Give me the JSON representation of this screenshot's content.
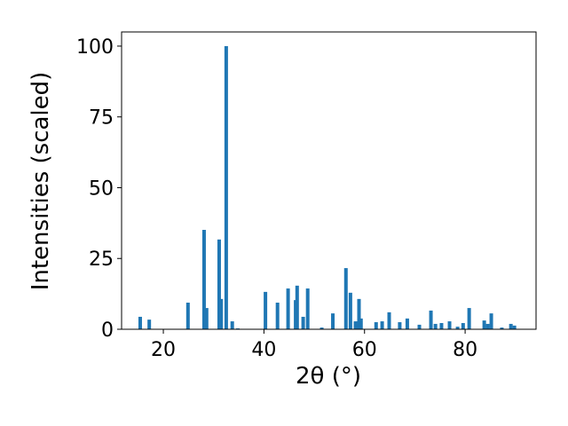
{
  "chart_data": {
    "type": "bar",
    "x_label": "2θ (°)",
    "y_label": "Intensities (scaled)",
    "color": "#1f77b4",
    "x": [
      15.4,
      17.2,
      24.9,
      28.1,
      28.6,
      31.1,
      31.5,
      32.5,
      33.7,
      34.8,
      40.3,
      42.7,
      44.8,
      46.3,
      46.6,
      47.8,
      48.7,
      51.5,
      53.7,
      56.3,
      57.2,
      58.2,
      58.9,
      59.3,
      62.3,
      63.5,
      64.9,
      67.0,
      68.5,
      70.9,
      73.2,
      74.1,
      75.3,
      76.9,
      78.5,
      79.6,
      80.8,
      83.8,
      84.5,
      85.2,
      87.3,
      89.1,
      89.8
    ],
    "values": [
      4.4,
      3.4,
      9.4,
      35.1,
      7.5,
      31.7,
      10.7,
      100,
      2.8,
      0.3,
      13.2,
      9.4,
      14.4,
      10.3,
      15.4,
      4.4,
      14.4,
      0.6,
      5.6,
      21.6,
      12.9,
      2.8,
      10.7,
      3.8,
      2.5,
      2.8,
      6.0,
      2.5,
      3.8,
      1.6,
      6.6,
      1.9,
      2.2,
      2.8,
      0.9,
      2.2,
      7.5,
      3.1,
      1.9,
      5.6,
      0.6,
      1.9,
      1.3
    ],
    "xlim": [
      11.7,
      94.1
    ],
    "ylim": [
      0,
      105
    ],
    "xticks": [
      20,
      40,
      60,
      80
    ],
    "yticks": [
      0,
      25,
      50,
      75,
      100
    ],
    "grid": false
  }
}
